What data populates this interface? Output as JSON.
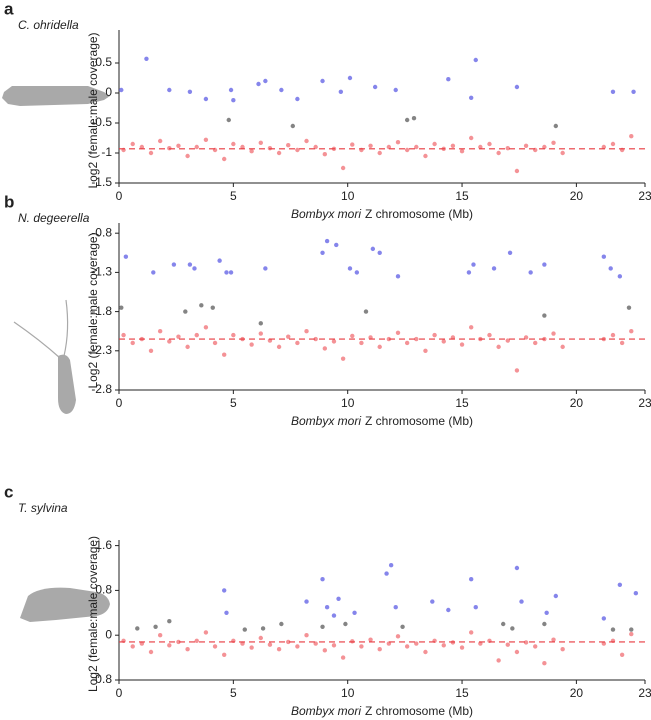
{
  "chart_data": [
    {
      "type": "scatter",
      "panel": "a",
      "species": "C. ohridella",
      "ylabel": "Log2 (female:male coverage)",
      "xlabel": [
        "Bombyx mori",
        "Z chromosome (Mb)"
      ],
      "xlim": [
        0,
        23
      ],
      "xticks": [
        0,
        5,
        10,
        15,
        20,
        23
      ],
      "ylim": [
        -1.5,
        1.05
      ],
      "yticks": [
        -1.5,
        -1,
        -0.5,
        0,
        0.5
      ],
      "trend": -0.93,
      "trend_color": "#e8393f",
      "series": [
        {
          "color": "#f27f84",
          "x": [
            0.2,
            0.6,
            1,
            1.4,
            1.8,
            2.2,
            2.6,
            3,
            3.4,
            3.8,
            4.2,
            4.6,
            5,
            5.4,
            5.8,
            6.2,
            6.6,
            7,
            7.4,
            7.8,
            8.2,
            8.6,
            9,
            9.4,
            9.8,
            10.2,
            10.6,
            11,
            11.4,
            11.8,
            12.2,
            12.6,
            13,
            13.4,
            13.8,
            14.2,
            14.6,
            15,
            15.4,
            15.8,
            16.2,
            16.6,
            17,
            17.4,
            17.8,
            18.2,
            18.6,
            19,
            19.4,
            21.2,
            21.6,
            22,
            22.4
          ],
          "y": [
            -0.95,
            -0.85,
            -0.9,
            -1.0,
            -0.8,
            -0.92,
            -0.88,
            -1.05,
            -0.9,
            -0.78,
            -0.95,
            -1.1,
            -0.85,
            -0.9,
            -0.97,
            -0.83,
            -0.92,
            -1.0,
            -0.87,
            -0.95,
            -0.8,
            -0.9,
            -1.02,
            -0.93,
            -1.25,
            -0.86,
            -0.95,
            -0.88,
            -1.0,
            -0.9,
            -0.82,
            -0.95,
            -0.9,
            -1.05,
            -0.85,
            -0.93,
            -0.88,
            -0.97,
            -0.75,
            -0.9,
            -0.85,
            -1.0,
            -0.92,
            -1.3,
            -0.88,
            -0.95,
            -0.9,
            -0.83,
            -1.0,
            -0.9,
            -0.85,
            -0.95,
            -0.72
          ]
        },
        {
          "color": "#7070e8",
          "x": [
            0.1,
            1.2,
            2.2,
            3.1,
            3.8,
            4.9,
            5,
            6.1,
            6.4,
            7.1,
            7.8,
            8.9,
            9.7,
            10.1,
            11.2,
            12.1,
            14.4,
            15.6,
            15.4,
            17.4,
            21.6,
            22.5
          ],
          "y": [
            0.05,
            0.57,
            0.05,
            0.02,
            -0.1,
            0.05,
            -0.12,
            0.15,
            0.2,
            0.05,
            -0.1,
            0.2,
            0.02,
            0.25,
            0.1,
            0.05,
            0.23,
            0.55,
            -0.08,
            0.1,
            0.02,
            0.02
          ]
        },
        {
          "color": "#6e6e6e",
          "x": [
            4.8,
            7.6,
            12.6,
            12.9,
            19.1
          ],
          "y": [
            -0.45,
            -0.55,
            -0.45,
            -0.42,
            -0.55
          ]
        }
      ]
    },
    {
      "type": "scatter",
      "panel": "b",
      "species": "N. degeerella",
      "ylabel": "Log2 (female:male coverage)",
      "xlabel": [
        "Bombyx mori",
        "Z chromosome (Mb)"
      ],
      "xlim": [
        0,
        23
      ],
      "xticks": [
        0,
        5,
        10,
        15,
        20,
        23
      ],
      "ylim": [
        -2.8,
        -0.67
      ],
      "yticks": [
        -2.8,
        -2.3,
        -1.8,
        -1.3,
        -0.8
      ],
      "trend": -2.15,
      "trend_color": "#e8393f",
      "series": [
        {
          "color": "#f27f84",
          "x": [
            0.2,
            0.6,
            1,
            1.4,
            1.8,
            2.2,
            2.6,
            3,
            3.4,
            3.8,
            4.2,
            4.6,
            5,
            5.4,
            5.8,
            6.2,
            6.6,
            7,
            7.4,
            7.8,
            8.2,
            8.6,
            9,
            9.4,
            9.8,
            10.2,
            10.6,
            11,
            11.4,
            11.8,
            12.2,
            12.6,
            13,
            13.4,
            13.8,
            14.2,
            14.6,
            15,
            15.4,
            15.8,
            16.2,
            16.6,
            17,
            17.4,
            17.8,
            18.2,
            18.6,
            19,
            19.4,
            21.2,
            21.6,
            22,
            22.4
          ],
          "y": [
            -2.1,
            -2.2,
            -2.15,
            -2.3,
            -2.05,
            -2.18,
            -2.12,
            -2.25,
            -2.1,
            -2.0,
            -2.2,
            -2.35,
            -2.1,
            -2.15,
            -2.22,
            -2.08,
            -2.17,
            -2.25,
            -2.12,
            -2.2,
            -2.05,
            -2.15,
            -2.27,
            -2.18,
            -2.4,
            -2.11,
            -2.2,
            -2.13,
            -2.25,
            -2.15,
            -2.07,
            -2.2,
            -2.15,
            -2.3,
            -2.1,
            -2.18,
            -2.13,
            -2.22,
            -2.0,
            -2.15,
            -2.1,
            -2.25,
            -2.17,
            -2.55,
            -2.13,
            -2.2,
            -2.15,
            -2.08,
            -2.25,
            -2.15,
            -2.1,
            -2.2,
            -2.05
          ]
        },
        {
          "color": "#7070e8",
          "x": [
            0.3,
            1.5,
            2.4,
            3.1,
            3.3,
            4.4,
            4.7,
            4.9,
            6.4,
            8.9,
            9.1,
            9.5,
            10.1,
            10.4,
            11.1,
            11.4,
            12.2,
            15.3,
            15.5,
            16.4,
            17.1,
            18,
            18.6,
            21.2,
            21.5,
            21.9
          ],
          "y": [
            -1.1,
            -1.3,
            -1.2,
            -1.2,
            -1.25,
            -1.15,
            -1.3,
            -1.3,
            -1.25,
            -1.05,
            -0.9,
            -0.95,
            -1.25,
            -1.3,
            -1.0,
            -1.05,
            -1.35,
            -1.3,
            -1.2,
            -1.25,
            -1.05,
            -1.3,
            -1.2,
            -1.1,
            -1.25,
            -1.35
          ]
        },
        {
          "color": "#6e6e6e",
          "x": [
            0.1,
            2.9,
            3.6,
            4.1,
            6.2,
            10.8,
            18.6,
            22.3
          ],
          "y": [
            -1.75,
            -1.8,
            -1.72,
            -1.75,
            -1.95,
            -1.8,
            -1.85,
            -1.75
          ]
        }
      ]
    },
    {
      "type": "scatter",
      "panel": "c",
      "species": "T. sylvina",
      "ylabel": "Log2 (female:male coverage)",
      "xlabel": [
        "Bombyx mori",
        "Z chromosome (Mb)"
      ],
      "xlim": [
        0,
        23
      ],
      "xticks": [
        0,
        5,
        10,
        15,
        20,
        23
      ],
      "ylim": [
        -0.8,
        1.7
      ],
      "yticks": [
        -0.8,
        0,
        0.8,
        1.6
      ],
      "trend": -0.12,
      "trend_color": "#e8393f",
      "series": [
        {
          "color": "#f27f84",
          "x": [
            0.2,
            0.6,
            1,
            1.4,
            1.8,
            2.2,
            2.6,
            3,
            3.4,
            3.8,
            4.2,
            4.6,
            5,
            5.4,
            5.8,
            6.2,
            6.6,
            7,
            7.4,
            7.8,
            8.2,
            8.6,
            9,
            9.4,
            9.8,
            10.2,
            10.6,
            11,
            11.4,
            11.8,
            12.2,
            12.6,
            13,
            13.4,
            13.8,
            14.2,
            14.6,
            15,
            15.4,
            15.8,
            16.2,
            16.6,
            17,
            17.4,
            17.8,
            18.2,
            18.6,
            19,
            19.4,
            21.2,
            21.6,
            22,
            22.4
          ],
          "y": [
            -0.1,
            -0.2,
            -0.15,
            -0.3,
            0.0,
            -0.18,
            -0.12,
            -0.25,
            -0.1,
            0.05,
            -0.2,
            -0.35,
            -0.1,
            -0.15,
            -0.22,
            -0.05,
            -0.17,
            -0.25,
            -0.12,
            -0.2,
            0.0,
            -0.15,
            -0.27,
            -0.18,
            -0.4,
            -0.11,
            -0.2,
            -0.08,
            -0.25,
            -0.15,
            -0.02,
            -0.2,
            -0.15,
            -0.3,
            -0.1,
            -0.18,
            -0.13,
            -0.22,
            0.05,
            -0.15,
            -0.1,
            -0.45,
            -0.17,
            -0.3,
            -0.13,
            -0.2,
            -0.5,
            -0.08,
            -0.25,
            -0.15,
            -0.1,
            -0.35,
            0.02
          ]
        },
        {
          "color": "#7070e8",
          "x": [
            4.6,
            4.7,
            8.2,
            8.9,
            9.1,
            9.4,
            9.6,
            10.3,
            11.7,
            11.9,
            12.1,
            13.7,
            14.4,
            15.4,
            15.6,
            17.4,
            17.6,
            18.7,
            19.1,
            21.2,
            21.9,
            22.6
          ],
          "y": [
            0.8,
            0.4,
            0.6,
            1.0,
            0.5,
            0.35,
            0.65,
            0.4,
            1.1,
            1.25,
            0.5,
            0.6,
            0.45,
            1.0,
            0.5,
            1.2,
            0.6,
            0.4,
            0.7,
            0.3,
            0.9,
            0.75
          ]
        },
        {
          "color": "#6e6e6e",
          "x": [
            0.8,
            1.6,
            2.2,
            5.5,
            6.3,
            7.1,
            8.9,
            9.9,
            12.4,
            16.8,
            17.2,
            18.6,
            21.6,
            22.4
          ],
          "y": [
            0.12,
            0.15,
            0.25,
            0.1,
            0.12,
            0.2,
            0.15,
            0.2,
            0.15,
            0.2,
            0.12,
            0.2,
            0.1,
            0.1
          ]
        }
      ]
    }
  ]
}
